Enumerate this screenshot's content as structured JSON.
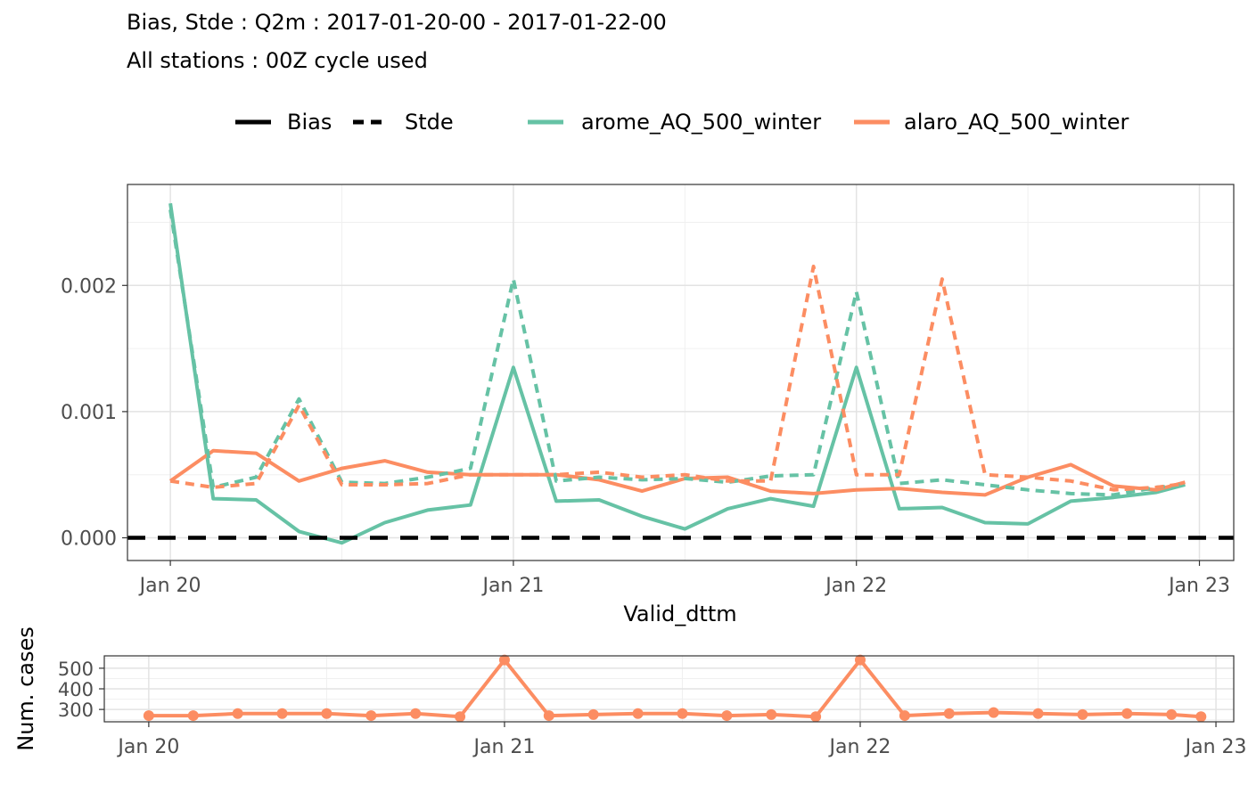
{
  "title_line1": "Bias, Stde : Q2m : 2017-01-20-00 - 2017-01-22-00",
  "title_line2": "All stations : 00Z cycle used",
  "legend": {
    "linetype": [
      {
        "label": "Bias",
        "dash": "solid"
      },
      {
        "label": "Stde",
        "dash": "dashed"
      }
    ],
    "models": [
      {
        "label": "arome_AQ_500_winter",
        "color": "#66c2a5"
      },
      {
        "label": "alaro_AQ_500_winter",
        "color": "#fc8d62"
      }
    ]
  },
  "chart_data": [
    {
      "type": "line",
      "xlabel": "Valid_dttm",
      "ylabel": "",
      "x_tick_labels": [
        "Jan 20",
        "Jan 21",
        "Jan 22",
        "Jan 23"
      ],
      "y_tick_labels": [
        "0.000",
        "0.001",
        "0.002"
      ],
      "xlim": [
        -0.125,
        3.1
      ],
      "ylim": [
        -0.00018,
        0.0028
      ],
      "x_units": "days since Jan 20 00Z",
      "grid": true,
      "reference_line": {
        "y": 0,
        "style": "dashed",
        "color": "#000000"
      },
      "x": [
        0,
        0.125,
        0.25,
        0.375,
        0.5,
        0.625,
        0.75,
        0.875,
        1,
        1.125,
        1.25,
        1.375,
        1.5,
        1.625,
        1.75,
        1.875,
        2,
        2.125,
        2.25,
        2.375,
        2.5,
        2.625,
        2.75,
        2.875,
        2.958
      ],
      "series": [
        {
          "name": "arome_AQ_500_winter",
          "stat": "Bias",
          "color": "#66c2a5",
          "dash": "solid",
          "values": [
            0.00265,
            0.00031,
            0.0003,
            5e-05,
            -4e-05,
            0.00012,
            0.00022,
            0.00026,
            0.00135,
            0.00029,
            0.0003,
            0.00017,
            7e-05,
            0.00023,
            0.00031,
            0.00025,
            0.00135,
            0.00023,
            0.00024,
            0.00012,
            0.00011,
            0.00029,
            0.00032,
            0.00036,
            0.00042
          ]
        },
        {
          "name": "alaro_AQ_500_winter",
          "stat": "Bias",
          "color": "#fc8d62",
          "dash": "solid",
          "values": [
            0.00045,
            0.00069,
            0.00067,
            0.00045,
            0.00055,
            0.00061,
            0.00052,
            0.0005,
            0.0005,
            0.0005,
            0.00046,
            0.00037,
            0.00047,
            0.00048,
            0.00037,
            0.00035,
            0.00038,
            0.00039,
            0.00036,
            0.00034,
            0.00048,
            0.00058,
            0.00041,
            0.00038,
            0.00044
          ]
        },
        {
          "name": "arome_AQ_500_winter",
          "stat": "Stde",
          "color": "#66c2a5",
          "dash": "dashed",
          "values": [
            0.0026,
            0.0004,
            0.00048,
            0.0011,
            0.00044,
            0.00043,
            0.00048,
            0.00055,
            0.00205,
            0.00045,
            0.00048,
            0.00046,
            0.00047,
            0.00044,
            0.00049,
            0.0005,
            0.00195,
            0.00043,
            0.00046,
            0.00042,
            0.00038,
            0.00035,
            0.00034,
            0.0004,
            0.00042
          ]
        },
        {
          "name": "alaro_AQ_500_winter",
          "stat": "Stde",
          "color": "#fc8d62",
          "dash": "dashed",
          "values": [
            0.00045,
            0.0004,
            0.00043,
            0.00105,
            0.00042,
            0.00042,
            0.00043,
            0.0005,
            0.0005,
            0.0005,
            0.00052,
            0.00048,
            0.0005,
            0.00045,
            0.00045,
            0.00215,
            0.0005,
            0.0005,
            0.00205,
            0.0005,
            0.00048,
            0.00045,
            0.00038,
            0.0004,
            0.00043
          ]
        }
      ]
    },
    {
      "type": "line",
      "xlabel": "",
      "ylabel": "Num. cases",
      "x_tick_labels": [
        "Jan 20",
        "Jan 21",
        "Jan 22",
        "Jan 23"
      ],
      "y_tick_labels": [
        "300",
        "400",
        "500"
      ],
      "xlim": [
        -0.125,
        3.05
      ],
      "ylim": [
        240,
        560
      ],
      "grid": true,
      "series": [
        {
          "name": "alaro_AQ_500_winter",
          "color": "#fc8d62",
          "markers": true,
          "x": [
            0,
            0.125,
            0.25,
            0.375,
            0.5,
            0.625,
            0.75,
            0.875,
            1,
            1.125,
            1.25,
            1.375,
            1.5,
            1.625,
            1.75,
            1.875,
            2,
            2.125,
            2.25,
            2.375,
            2.5,
            2.625,
            2.75,
            2.875,
            2.958
          ],
          "values": [
            270,
            270,
            280,
            280,
            280,
            270,
            280,
            265,
            540,
            270,
            275,
            280,
            280,
            270,
            275,
            265,
            540,
            270,
            280,
            285,
            280,
            275,
            280,
            275,
            265
          ]
        }
      ]
    }
  ]
}
